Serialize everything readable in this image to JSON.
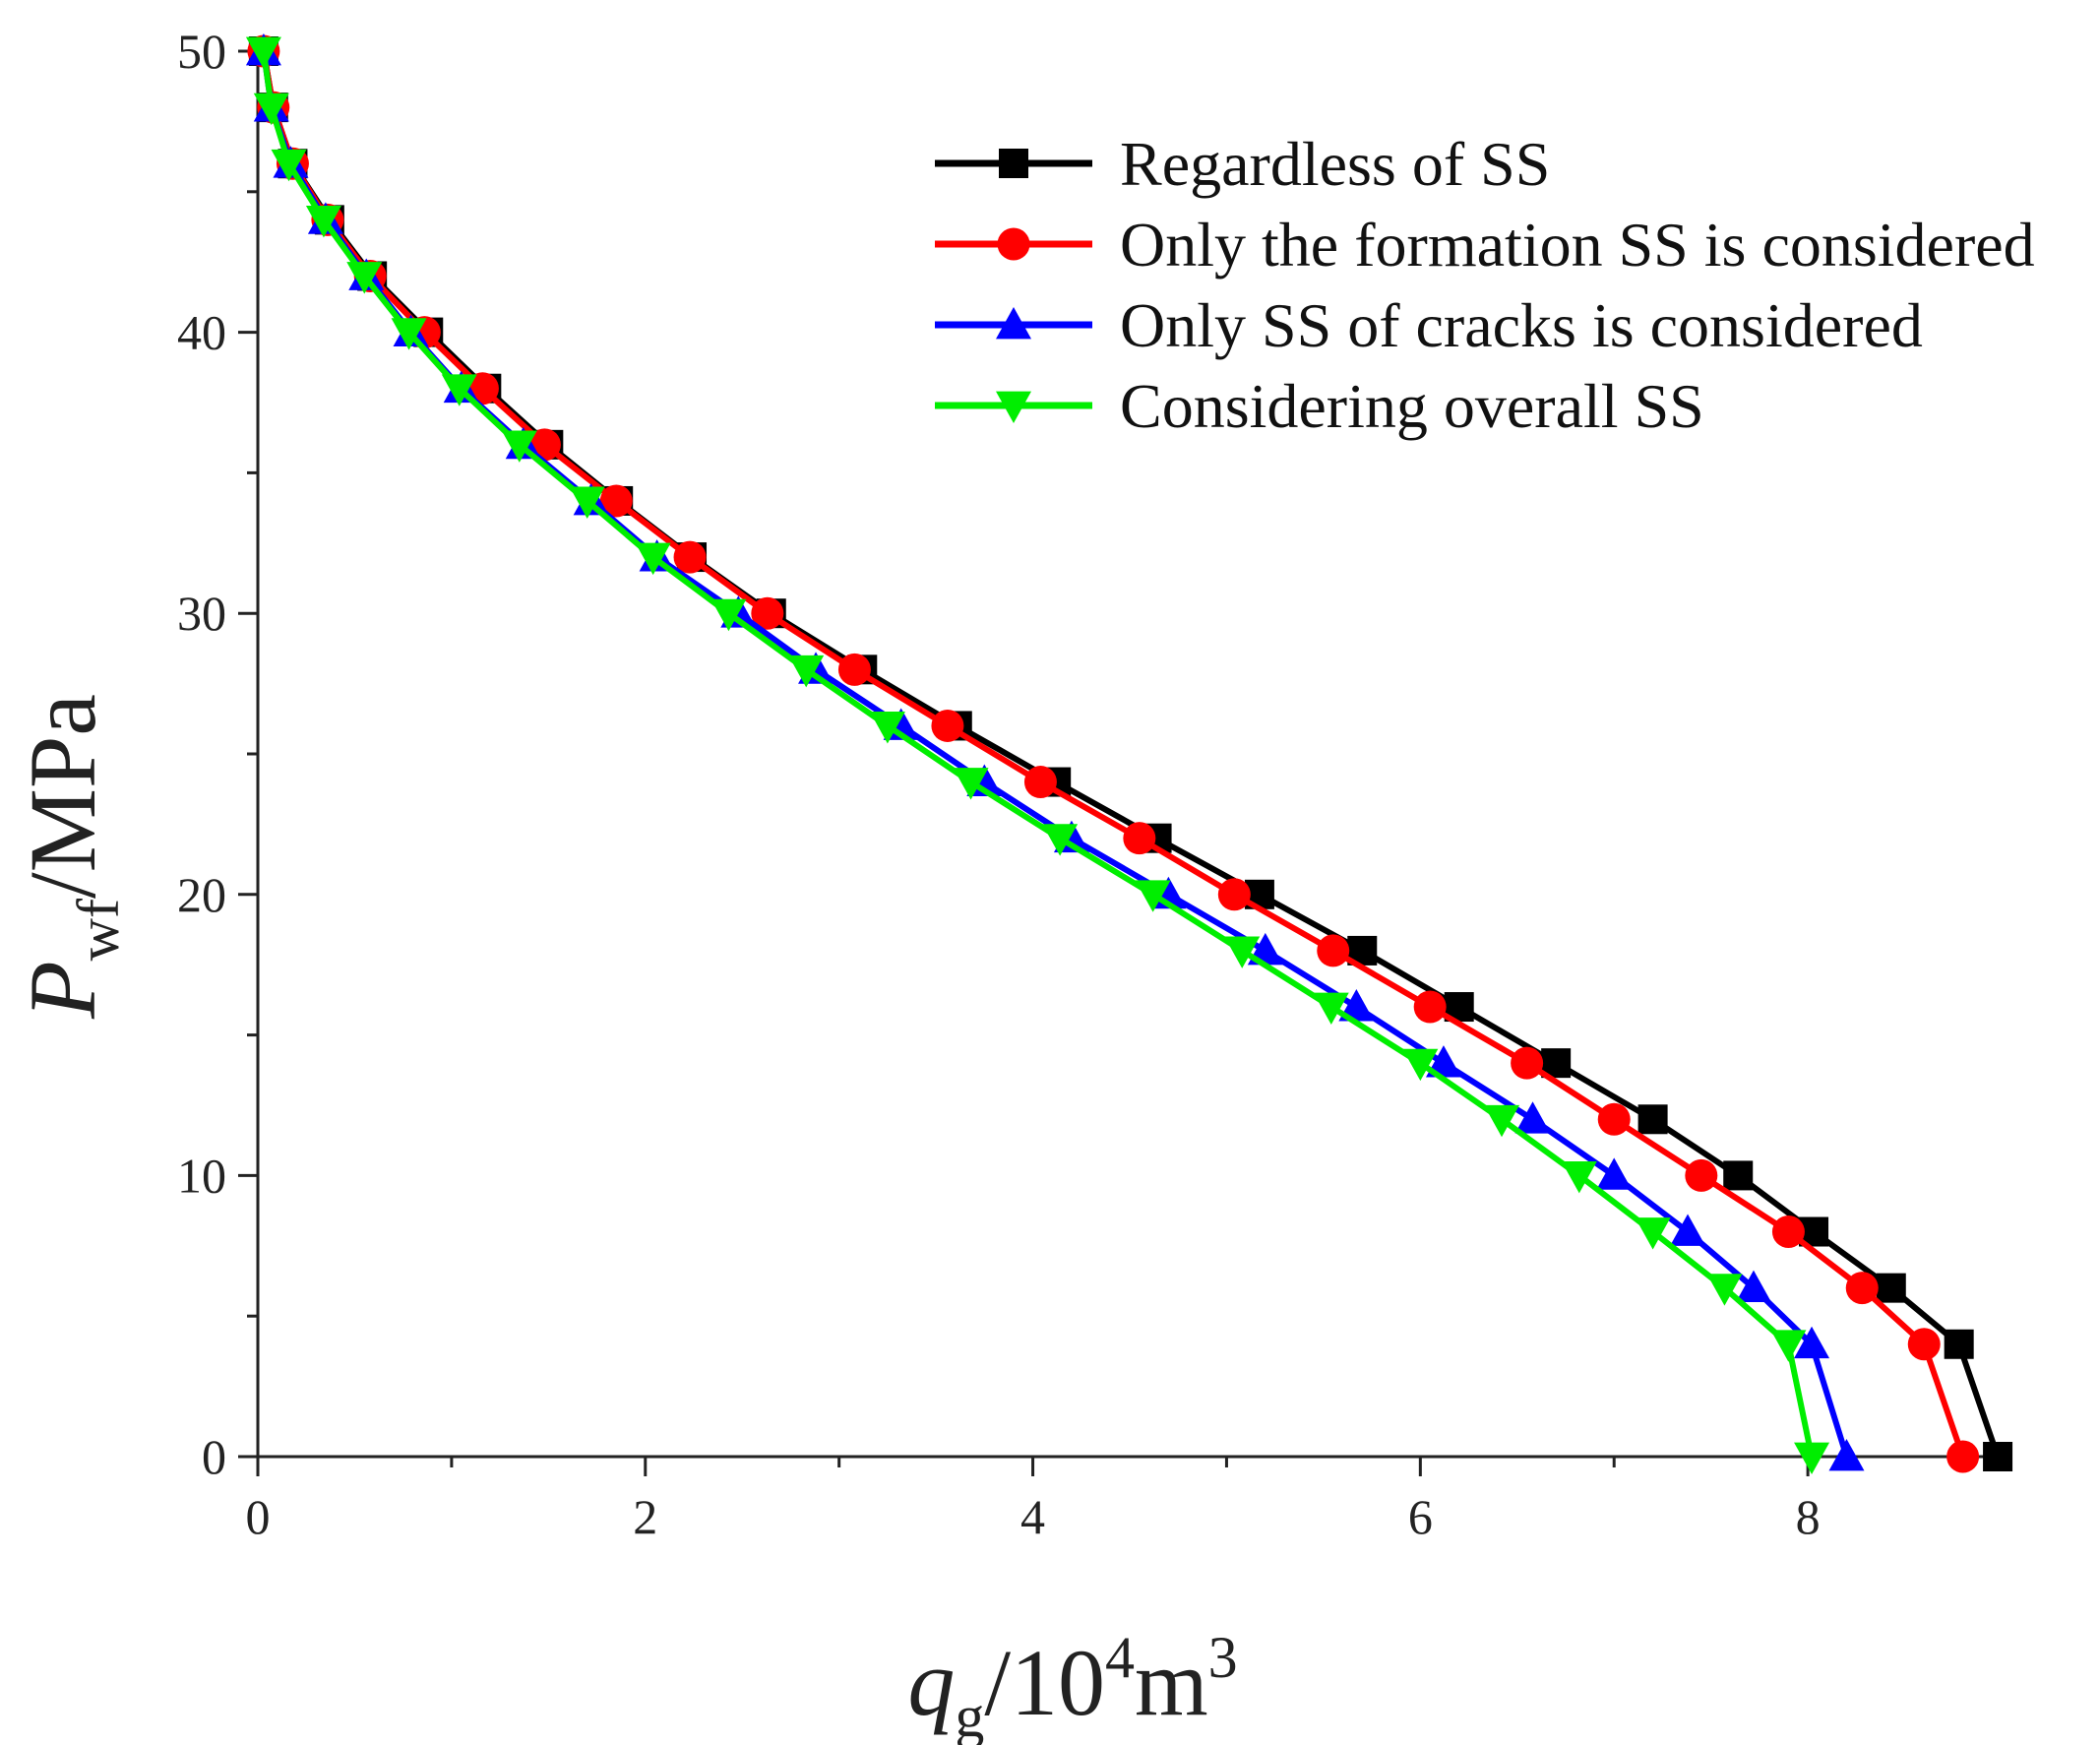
{
  "chart_data": {
    "type": "line",
    "title": "",
    "xlabel": {
      "base": "q",
      "sub": "g",
      "sep": "/10",
      "sup1": "4",
      "unit": "m",
      "sup2": "3"
    },
    "ylabel": {
      "base": "P",
      "sub": "wf",
      "unit": "/MPa"
    },
    "xlim": [
      0,
      9
    ],
    "ylim": [
      0,
      50
    ],
    "x_ticks": [
      0,
      2,
      4,
      6,
      8
    ],
    "y_ticks": [
      0,
      10,
      20,
      30,
      40,
      50
    ],
    "x_tick_labels": [
      "0",
      "2",
      "4",
      "6",
      "8"
    ],
    "y_tick_labels": [
      "0",
      "10",
      "20",
      "30",
      "40",
      "50"
    ],
    "x_minor_step": 1,
    "y_minor_step": 5,
    "grid": false,
    "legend_position": "top-right",
    "series": [
      {
        "name": "Regardless of SS",
        "color": "#000000",
        "marker": "square",
        "points": [
          [
            0.03,
            50
          ],
          [
            0.08,
            48
          ],
          [
            0.18,
            46
          ],
          [
            0.37,
            44
          ],
          [
            0.59,
            42
          ],
          [
            0.88,
            40
          ],
          [
            1.18,
            38
          ],
          [
            1.5,
            36
          ],
          [
            1.86,
            34
          ],
          [
            2.24,
            32
          ],
          [
            2.65,
            30
          ],
          [
            3.12,
            28
          ],
          [
            3.61,
            26
          ],
          [
            4.12,
            24
          ],
          [
            4.64,
            22
          ],
          [
            5.17,
            20
          ],
          [
            5.7,
            18
          ],
          [
            6.2,
            16
          ],
          [
            6.7,
            14
          ],
          [
            7.2,
            12
          ],
          [
            7.64,
            10
          ],
          [
            8.03,
            8
          ],
          [
            8.43,
            6
          ],
          [
            8.78,
            4
          ],
          [
            8.98,
            0
          ]
        ]
      },
      {
        "name": "Only the formation SS is considered",
        "color": "#ff0000",
        "marker": "circle",
        "points": [
          [
            0.03,
            50
          ],
          [
            0.08,
            48
          ],
          [
            0.18,
            46
          ],
          [
            0.36,
            44
          ],
          [
            0.58,
            42
          ],
          [
            0.86,
            40
          ],
          [
            1.16,
            38
          ],
          [
            1.48,
            36
          ],
          [
            1.85,
            34
          ],
          [
            2.23,
            32
          ],
          [
            2.63,
            30
          ],
          [
            3.08,
            28
          ],
          [
            3.56,
            26
          ],
          [
            4.04,
            24
          ],
          [
            4.55,
            22
          ],
          [
            5.04,
            20
          ],
          [
            5.55,
            18
          ],
          [
            6.05,
            16
          ],
          [
            6.55,
            14
          ],
          [
            7.0,
            12
          ],
          [
            7.45,
            10
          ],
          [
            7.9,
            8
          ],
          [
            8.28,
            6
          ],
          [
            8.6,
            4
          ],
          [
            8.8,
            0
          ]
        ]
      },
      {
        "name": "Only SS of cracks is considered",
        "color": "#0000ff",
        "marker": "triangle-up",
        "points": [
          [
            0.03,
            50
          ],
          [
            0.07,
            48
          ],
          [
            0.17,
            46
          ],
          [
            0.35,
            44
          ],
          [
            0.56,
            42
          ],
          [
            0.79,
            40
          ],
          [
            1.05,
            38
          ],
          [
            1.37,
            36
          ],
          [
            1.72,
            34
          ],
          [
            2.06,
            32
          ],
          [
            2.48,
            30
          ],
          [
            2.88,
            28
          ],
          [
            3.32,
            26
          ],
          [
            3.75,
            24
          ],
          [
            4.2,
            22
          ],
          [
            4.7,
            20
          ],
          [
            5.2,
            18
          ],
          [
            5.67,
            16
          ],
          [
            6.12,
            14
          ],
          [
            6.58,
            12
          ],
          [
            7.0,
            10
          ],
          [
            7.38,
            8
          ],
          [
            7.72,
            6
          ],
          [
            8.02,
            4
          ],
          [
            8.2,
            0
          ]
        ]
      },
      {
        "name": "Considering overall SS",
        "color": "#00ee00",
        "marker": "triangle-down",
        "points": [
          [
            0.03,
            50
          ],
          [
            0.07,
            48
          ],
          [
            0.16,
            46
          ],
          [
            0.34,
            44
          ],
          [
            0.55,
            42
          ],
          [
            0.78,
            40
          ],
          [
            1.04,
            38
          ],
          [
            1.35,
            36
          ],
          [
            1.7,
            34
          ],
          [
            2.04,
            32
          ],
          [
            2.43,
            30
          ],
          [
            2.83,
            28
          ],
          [
            3.25,
            26
          ],
          [
            3.68,
            24
          ],
          [
            4.14,
            22
          ],
          [
            4.62,
            20
          ],
          [
            5.08,
            18
          ],
          [
            5.54,
            16
          ],
          [
            6.0,
            14
          ],
          [
            6.42,
            12
          ],
          [
            6.82,
            10
          ],
          [
            7.2,
            8
          ],
          [
            7.57,
            6
          ],
          [
            7.9,
            4
          ],
          [
            8.02,
            0
          ]
        ]
      }
    ]
  }
}
